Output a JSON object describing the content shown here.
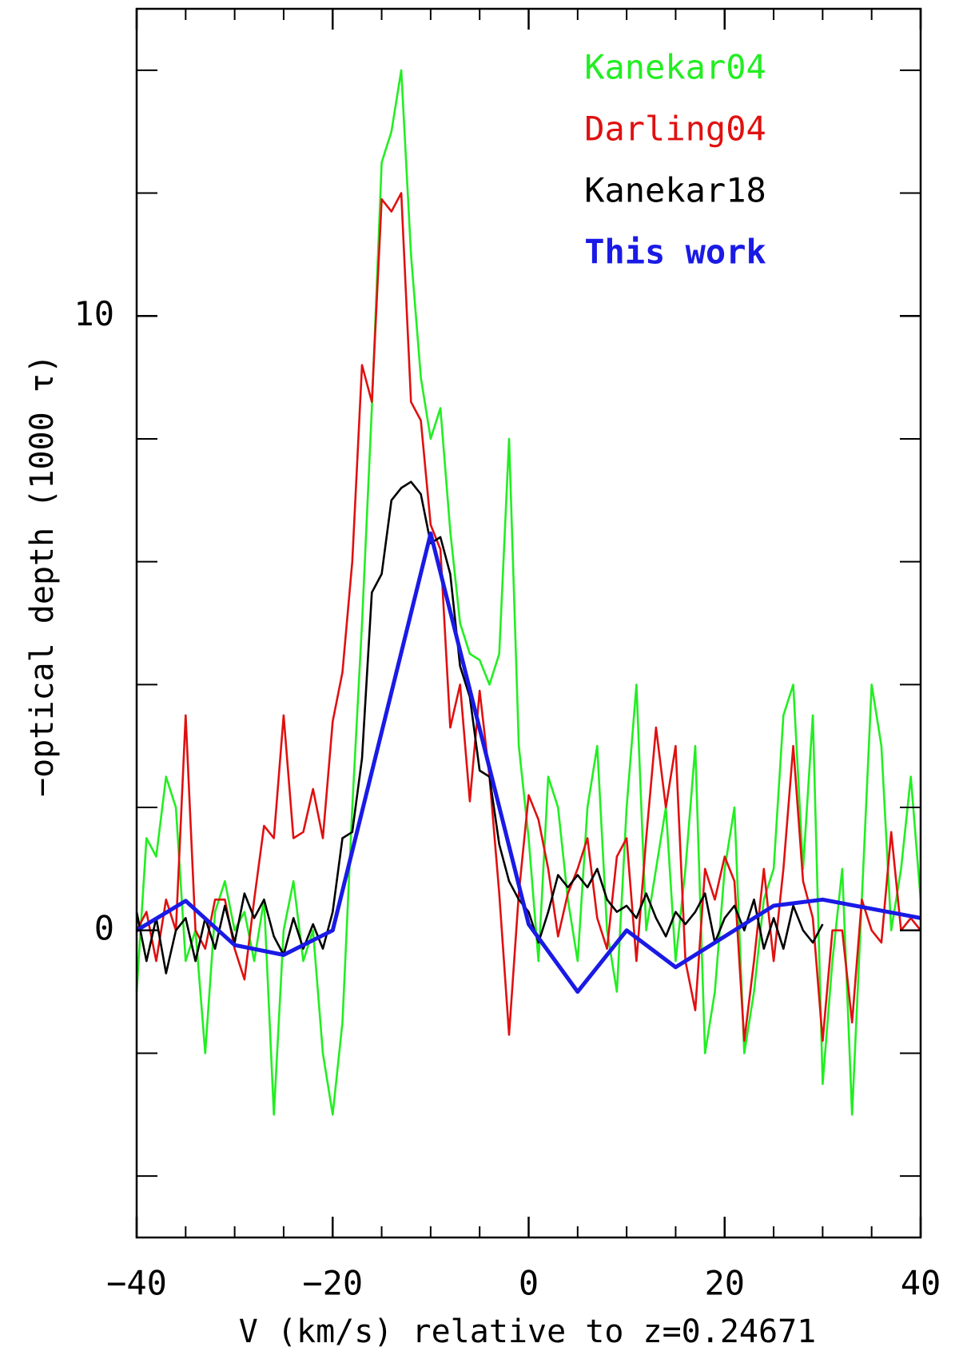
{
  "chart_data": {
    "type": "line",
    "xlabel": "V (km/s) relative to z=0.24671",
    "ylabel": "−optical depth (1000 τ)",
    "xlim": [
      -40,
      40
    ],
    "ylim": [
      -5,
      15
    ],
    "xticks": [
      {
        "value": -40,
        "label": "−40"
      },
      {
        "value": -20,
        "label": "−20"
      },
      0,
      20,
      40
    ],
    "yticks": [
      0,
      10
    ],
    "minor_xticks": [
      -35,
      -30,
      -25,
      -15,
      -10,
      -5,
      5,
      10,
      15,
      25,
      30,
      35
    ],
    "minor_yticks": [
      -4,
      -2,
      2,
      4,
      6,
      8,
      12,
      14
    ],
    "legend": "upper right",
    "series": [
      {
        "name": "Kanekar04",
        "color": "#22ee22",
        "x": [
          -40,
          -39,
          -38,
          -37,
          -36,
          -35,
          -34,
          -33,
          -32,
          -31,
          -30,
          -29,
          -28,
          -27,
          -26,
          -25,
          -24,
          -23,
          -22,
          -21,
          -20,
          -19,
          -18,
          -17,
          -16,
          -15,
          -14,
          -13,
          -12,
          -11,
          -10,
          -9,
          -8,
          -7,
          -6,
          -5,
          -4,
          -3,
          -2,
          -1,
          0,
          1,
          2,
          3,
          4,
          5,
          6,
          7,
          8,
          9,
          10,
          11,
          12,
          13,
          14,
          15,
          16,
          17,
          18,
          19,
          20,
          21,
          22,
          23,
          24,
          25,
          26,
          27,
          28,
          29,
          30,
          31,
          32,
          33,
          34,
          35,
          36,
          37,
          38,
          39,
          40
        ],
        "values": [
          -1,
          1.5,
          1.2,
          2.5,
          2,
          -0.5,
          0,
          -2,
          0.3,
          0.8,
          0,
          0.3,
          -0.5,
          0.5,
          -3,
          0,
          0.8,
          -0.5,
          0,
          -2,
          -3,
          -1.5,
          2,
          5,
          8.5,
          12.5,
          13,
          14,
          11,
          9,
          8,
          8.5,
          6.5,
          5,
          4.5,
          4.4,
          4,
          4.5,
          8,
          3,
          1.5,
          -0.5,
          2.5,
          2,
          0.5,
          -0.5,
          2,
          3,
          0,
          -1,
          2,
          4,
          0,
          1,
          2,
          -0.5,
          1,
          3,
          -2,
          -1,
          1,
          2,
          -2,
          -1,
          0.5,
          1,
          3.5,
          4,
          1,
          3.5,
          -2.5,
          -0.5,
          1,
          -3,
          0.5,
          4,
          3,
          0,
          1,
          2.5,
          0.5
        ]
      },
      {
        "name": "Darling04",
        "color": "#e01010",
        "x": [
          -40,
          -39,
          -38,
          -37,
          -36,
          -35,
          -34,
          -33,
          -32,
          -31,
          -30,
          -29,
          -28,
          -27,
          -26,
          -25,
          -24,
          -23,
          -22,
          -21,
          -20,
          -19,
          -18,
          -17,
          -16,
          -15,
          -14,
          -13,
          -12,
          -11,
          -10,
          -9,
          -8,
          -7,
          -6,
          -5,
          -4,
          -3,
          -2,
          -1,
          0,
          1,
          2,
          3,
          4,
          5,
          6,
          7,
          8,
          9,
          10,
          11,
          12,
          13,
          14,
          15,
          16,
          17,
          18,
          19,
          20,
          21,
          22,
          23,
          24,
          25,
          26,
          27,
          28,
          29,
          30,
          31,
          32,
          33,
          34,
          35,
          36,
          37,
          38,
          39,
          40
        ],
        "values": [
          0,
          0.3,
          -0.5,
          0.5,
          0,
          3.5,
          0,
          -0.3,
          0.5,
          0.5,
          -0.3,
          -0.8,
          0.5,
          1.7,
          1.5,
          3.5,
          1.5,
          1.6,
          2.3,
          1.5,
          3.4,
          4.2,
          6,
          9.2,
          8.6,
          11.9,
          11.7,
          12,
          8.6,
          8.3,
          6.6,
          6.2,
          3.3,
          4,
          2.1,
          3.9,
          2.5,
          0.6,
          -1.7,
          0.6,
          2.2,
          1.8,
          1,
          -0.1,
          0.6,
          1,
          1.5,
          0.2,
          -0.3,
          1.2,
          1.5,
          -0.5,
          1.5,
          3.3,
          2,
          3,
          -0.5,
          -1.3,
          1,
          0.5,
          1.2,
          0.8,
          -1.8,
          -0.5,
          1,
          -0.5,
          1,
          3,
          0.8,
          0.2,
          -1.8,
          0,
          0,
          -1.5,
          0.5,
          0,
          -0.2,
          1.6,
          0,
          0.2,
          0
        ]
      },
      {
        "name": "Kanekar18",
        "color": "#000000",
        "x": [
          -40,
          -39,
          -38,
          -37,
          -36,
          -35,
          -34,
          -33,
          -32,
          -31,
          -30,
          -29,
          -28,
          -27,
          -26,
          -25,
          -24,
          -23,
          -22,
          -21,
          -20,
          -19,
          -18,
          -17,
          -16,
          -15,
          -14,
          -13,
          -12,
          -11,
          -10,
          -9,
          -8,
          -7,
          -6,
          -5,
          -4,
          -3,
          -2,
          -1,
          0,
          1,
          2,
          3,
          4,
          5,
          6,
          7,
          8,
          9,
          10,
          11,
          12,
          13,
          14,
          15,
          16,
          17,
          18,
          19,
          20,
          21,
          22,
          23,
          24,
          25,
          26,
          27,
          28,
          29,
          30
        ],
        "values": [
          0.3,
          -0.5,
          0.2,
          -0.7,
          0,
          0.2,
          -0.5,
          0.2,
          -0.3,
          0.4,
          -0.2,
          0.6,
          0.2,
          0.5,
          -0.1,
          -0.4,
          0.2,
          -0.3,
          0.1,
          -0.3,
          0.3,
          1.5,
          1.6,
          2.8,
          5.5,
          5.8,
          7,
          7.2,
          7.3,
          7.1,
          6.3,
          6.4,
          5.8,
          4.3,
          3.8,
          2.6,
          2.5,
          1.4,
          0.8,
          0.5,
          0.3,
          -0.2,
          0.3,
          0.9,
          0.7,
          0.9,
          0.7,
          1,
          0.5,
          0.3,
          0.4,
          0.2,
          0.6,
          0.2,
          -0.1,
          0.3,
          0.1,
          0.3,
          0.6,
          -0.2,
          0.2,
          0.4,
          0,
          0.5,
          -0.3,
          0.2,
          -0.3,
          0.4,
          0,
          -0.2,
          0.1
        ]
      },
      {
        "name": "This work",
        "color": "#1a1ae6",
        "bold": true,
        "x": [
          -40,
          -35,
          -30,
          -25,
          -20,
          -10,
          0,
          5,
          10,
          15,
          25,
          30,
          40
        ],
        "values": [
          0,
          0.48,
          -0.24,
          -0.4,
          0,
          6.46,
          0.1,
          -1,
          0,
          -0.6,
          0.4,
          0.5,
          0.2
        ]
      }
    ]
  }
}
